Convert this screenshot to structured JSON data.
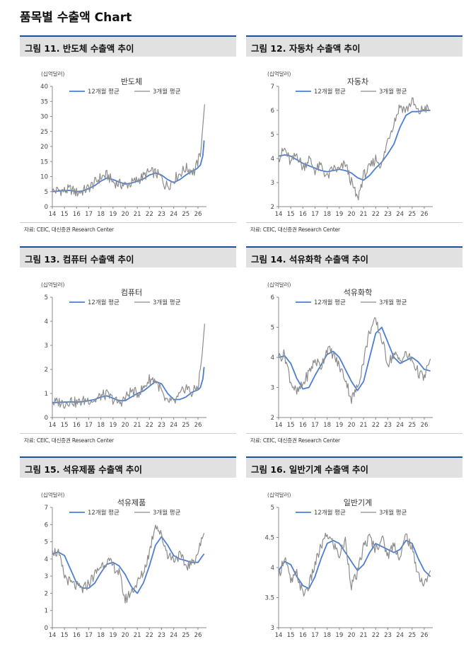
{
  "page_title": "품목별 수출액 Chart",
  "colors": {
    "line_12m": "#4a7fd4",
    "line_3m": "#8c8c8c",
    "header_bar": "#1f4e9c",
    "header_bg": "#e1e1e1"
  },
  "chart_data": [
    {
      "id": "fig11",
      "header": "그림 11. 반도체 수출액 추이",
      "type": "line",
      "title": "반도체",
      "ylabel": "(십억달러)",
      "xlabel": "",
      "x_range": [
        14,
        26.7
      ],
      "ylim": [
        0,
        40
      ],
      "yticks": [
        0,
        5,
        10,
        15,
        20,
        25,
        30,
        35,
        40
      ],
      "xticks": [
        "14",
        "15",
        "16",
        "17",
        "18",
        "19",
        "20",
        "21",
        "22",
        "23",
        "24",
        "25",
        "26"
      ],
      "grid": false,
      "legend_placement": "top-center",
      "source": "자료: CEIC, 대신증권 Research Center",
      "series": [
        {
          "name": "12개월 평균",
          "style": "smooth",
          "x": [
            14,
            14.5,
            15,
            15.5,
            16,
            16.5,
            17,
            17.5,
            18,
            18.5,
            19,
            19.5,
            20,
            20.5,
            21,
            21.5,
            22,
            22.5,
            23,
            23.5,
            24,
            24.5,
            25,
            25.5,
            25.9,
            26.2,
            26.4,
            26.5
          ],
          "y": [
            5,
            5.2,
            5.3,
            5.4,
            5,
            5.2,
            6,
            7,
            8.5,
            9.5,
            9,
            8.2,
            7.5,
            7.8,
            8.5,
            9.2,
            10.5,
            11.2,
            10.5,
            9,
            8,
            9,
            10.5,
            11.8,
            12.6,
            13.8,
            17,
            22
          ]
        },
        {
          "name": "3개월 평균",
          "style": "noisy",
          "x": [
            14,
            14.5,
            15,
            15.5,
            16,
            16.5,
            17,
            17.5,
            18,
            18.5,
            19,
            19.5,
            20,
            20.5,
            21,
            21.5,
            22,
            22.5,
            23,
            23.3,
            23.7,
            24,
            24.5,
            25,
            25.4,
            25.7,
            26,
            26.2,
            26.4,
            26.55
          ],
          "y": [
            5,
            5.5,
            5.2,
            5.8,
            4.6,
            5.2,
            6.2,
            8,
            9.8,
            10.5,
            8.2,
            7.5,
            7.2,
            7.8,
            8.8,
            10,
            11.5,
            11.2,
            9.6,
            7,
            7.5,
            9,
            11,
            12.8,
            12.2,
            11.5,
            15,
            18,
            27,
            34
          ]
        }
      ]
    },
    {
      "id": "fig12",
      "header": "그림 12. 자동차 수출액 추이",
      "type": "line",
      "title": "자동차",
      "ylabel": "(십억달러)",
      "xlabel": "",
      "x_range": [
        14,
        26.7
      ],
      "ylim": [
        2,
        7
      ],
      "yticks": [
        2,
        3,
        4,
        5,
        6,
        7
      ],
      "xticks": [
        "14",
        "15",
        "16",
        "17",
        "18",
        "19",
        "20",
        "21",
        "22",
        "23",
        "24",
        "25",
        "26"
      ],
      "grid": false,
      "legend_placement": "top-center",
      "source": "자료: CEIC, 대신증권 Research Center",
      "series": [
        {
          "name": "12개월 평균",
          "style": "smooth",
          "x": [
            14,
            14.5,
            15,
            15.5,
            16,
            16.5,
            17,
            17.5,
            18,
            18.5,
            19,
            19.5,
            20,
            20.5,
            21,
            21.5,
            22,
            22.5,
            23,
            23.5,
            24,
            24.5,
            25,
            25.5,
            26,
            26.5
          ],
          "y": [
            4.1,
            4.15,
            4.1,
            3.95,
            3.8,
            3.7,
            3.6,
            3.5,
            3.45,
            3.5,
            3.55,
            3.5,
            3.4,
            3.2,
            3.1,
            3.3,
            3.6,
            3.85,
            4.2,
            4.6,
            5.3,
            5.8,
            5.95,
            5.95,
            6.0,
            6.0
          ]
        },
        {
          "name": "3개월 평균",
          "style": "noisy",
          "x": [
            14,
            14.5,
            15,
            15.5,
            16,
            16.5,
            17,
            17.5,
            18,
            18.5,
            19,
            19.5,
            20,
            20.5,
            21,
            21.5,
            22,
            22.5,
            23,
            23.5,
            24,
            24.5,
            25,
            25.5,
            26,
            26.5
          ],
          "y": [
            4.0,
            4.4,
            3.8,
            4.2,
            3.6,
            4.0,
            3.5,
            3.7,
            3.2,
            3.6,
            3.5,
            3.8,
            3.0,
            2.3,
            3.3,
            3.6,
            4.0,
            3.7,
            4.8,
            5.5,
            6.2,
            6.0,
            6.4,
            5.9,
            6.1,
            6.0
          ]
        }
      ]
    },
    {
      "id": "fig13",
      "header": "그림 13. 컴퓨터 수출액 추이",
      "type": "line",
      "title": "컴퓨터",
      "ylabel": "(십억달러)",
      "xlabel": "",
      "x_range": [
        14,
        26.7
      ],
      "ylim": [
        0,
        5
      ],
      "yticks": [
        0,
        1,
        2,
        3,
        4,
        5
      ],
      "xticks": [
        "14",
        "15",
        "16",
        "17",
        "18",
        "19",
        "20",
        "21",
        "22",
        "23",
        "24",
        "25",
        "26"
      ],
      "grid": false,
      "legend_placement": "top-center",
      "source": "자료: CEIC, 대신증권 Research Center",
      "series": [
        {
          "name": "12개월 평균",
          "style": "smooth",
          "x": [
            14,
            14.5,
            15,
            15.5,
            16,
            16.5,
            17,
            17.5,
            18,
            18.5,
            19,
            19.5,
            20,
            20.5,
            21,
            21.5,
            22,
            22.5,
            23,
            23.5,
            24,
            24.5,
            25,
            25.5,
            26,
            26.2,
            26.4,
            26.5
          ],
          "y": [
            0.62,
            0.63,
            0.64,
            0.65,
            0.64,
            0.66,
            0.7,
            0.75,
            0.85,
            0.9,
            0.8,
            0.7,
            0.7,
            0.85,
            1.0,
            1.1,
            1.3,
            1.5,
            1.4,
            1.0,
            0.75,
            0.75,
            0.85,
            1.05,
            1.15,
            1.25,
            1.6,
            2.1
          ]
        },
        {
          "name": "3개월 평균",
          "style": "noisy",
          "x": [
            14,
            14.5,
            15,
            15.5,
            16,
            16.5,
            17,
            17.5,
            18,
            18.5,
            19,
            19.5,
            20,
            20.5,
            21,
            21.5,
            22,
            22.5,
            23,
            23.3,
            23.7,
            24,
            24.5,
            25,
            25.5,
            26,
            26.2,
            26.4,
            26.55
          ],
          "y": [
            0.6,
            0.65,
            0.58,
            0.72,
            0.6,
            0.68,
            0.75,
            0.7,
            0.9,
            0.95,
            0.75,
            0.6,
            0.8,
            1.1,
            1.0,
            1.2,
            1.6,
            1.55,
            1.1,
            0.6,
            0.7,
            0.6,
            0.9,
            1.3,
            1.0,
            1.3,
            2.0,
            3.0,
            3.9
          ]
        }
      ]
    },
    {
      "id": "fig14",
      "header": "그림 14. 석유화학 수출액 추이",
      "type": "line",
      "title": "석유화학",
      "ylabel": "(십억달러)",
      "xlabel": "",
      "x_range": [
        14,
        26.7
      ],
      "ylim": [
        2,
        6
      ],
      "yticks": [
        2,
        3,
        4,
        5,
        6
      ],
      "xticks": [
        "14",
        "15",
        "16",
        "17",
        "18",
        "19",
        "20",
        "21",
        "22",
        "23",
        "24",
        "25",
        "26"
      ],
      "grid": false,
      "legend_placement": "top-center",
      "source": "자료: CEIC, 대신증권 Research Center",
      "series": [
        {
          "name": "12개월 평균",
          "style": "smooth",
          "x": [
            14,
            14.5,
            15,
            15.5,
            16,
            16.5,
            17,
            17.5,
            18,
            18.5,
            19,
            19.5,
            20,
            20.5,
            21,
            21.5,
            22,
            22.5,
            23,
            23.5,
            24,
            24.5,
            25,
            25.5,
            26,
            26.5
          ],
          "y": [
            4.0,
            4.05,
            3.8,
            3.3,
            2.95,
            3.0,
            3.4,
            3.75,
            4.1,
            4.2,
            4.0,
            3.6,
            3.2,
            2.9,
            3.2,
            4.0,
            4.8,
            5.0,
            4.5,
            4.0,
            3.8,
            3.9,
            4.0,
            3.85,
            3.6,
            3.55
          ]
        },
        {
          "name": "3개월 평균",
          "style": "noisy",
          "x": [
            14,
            14.5,
            15,
            15.5,
            16,
            16.5,
            17,
            17.5,
            18,
            18.5,
            19,
            19.5,
            20,
            20.5,
            21,
            21.5,
            22,
            22.5,
            23,
            23.5,
            24,
            24.5,
            25,
            25.5,
            26,
            26.5
          ],
          "y": [
            4.0,
            4.1,
            3.2,
            2.8,
            3.1,
            3.5,
            3.9,
            3.7,
            4.3,
            4.1,
            3.7,
            3.3,
            2.6,
            3.0,
            3.9,
            4.9,
            5.2,
            4.6,
            3.8,
            4.1,
            3.9,
            4.1,
            3.9,
            3.5,
            3.3,
            3.95
          ]
        }
      ]
    },
    {
      "id": "fig15",
      "header": "그림 15. 석유제품 수출액 추이",
      "type": "line",
      "title": "석유제품",
      "ylabel": "(십억달러)",
      "xlabel": "",
      "x_range": [
        14,
        26.7
      ],
      "ylim": [
        0,
        7
      ],
      "yticks": [
        0,
        1,
        2,
        3,
        4,
        5,
        6,
        7
      ],
      "xticks": [
        "14",
        "15",
        "16",
        "17",
        "18",
        "19",
        "20",
        "21",
        "22",
        "23",
        "24",
        "25",
        "26"
      ],
      "grid": false,
      "legend_placement": "top-center",
      "source": "",
      "series": [
        {
          "name": "12개월 평균",
          "style": "smooth",
          "x": [
            14,
            14.5,
            15,
            15.5,
            16,
            16.5,
            17,
            17.5,
            18,
            18.5,
            19,
            19.5,
            20,
            20.5,
            21,
            21.5,
            22,
            22.5,
            23,
            23.5,
            24,
            24.5,
            25,
            25.5,
            26,
            26.5
          ],
          "y": [
            4.3,
            4.4,
            4.2,
            3.4,
            2.6,
            2.3,
            2.3,
            2.6,
            3.2,
            3.7,
            3.8,
            3.6,
            3.1,
            2.4,
            2.0,
            2.6,
            3.6,
            4.8,
            5.3,
            4.8,
            4.2,
            4.0,
            3.9,
            3.8,
            3.8,
            4.3
          ]
        },
        {
          "name": "3개월 평균",
          "style": "noisy",
          "x": [
            14,
            14.5,
            15,
            15.5,
            16,
            16.5,
            17,
            17.5,
            18,
            18.5,
            19,
            19.5,
            20,
            20.5,
            21,
            21.5,
            22,
            22.5,
            23,
            23.5,
            24,
            24.5,
            25,
            25.5,
            26,
            26.5
          ],
          "y": [
            4.5,
            4.3,
            3.0,
            2.6,
            2.4,
            2.2,
            2.6,
            3.1,
            3.6,
            3.9,
            3.6,
            3.2,
            1.6,
            2.1,
            2.6,
            3.2,
            4.4,
            6.1,
            5.3,
            4.3,
            4.0,
            4.2,
            3.6,
            3.7,
            4.4,
            5.5
          ]
        }
      ]
    },
    {
      "id": "fig16",
      "header": "그림 16. 일반기계 수출액 추이",
      "type": "line",
      "title": "일반기계",
      "ylabel": "(십억달러)",
      "xlabel": "",
      "x_range": [
        14,
        26.7
      ],
      "ylim": [
        3,
        5
      ],
      "yticks": [
        3,
        3.5,
        4,
        4.5,
        5
      ],
      "xticks": [
        "14",
        "15",
        "16",
        "17",
        "18",
        "19",
        "20",
        "21",
        "22",
        "23",
        "24",
        "25",
        "26"
      ],
      "grid": false,
      "legend_placement": "top-center",
      "source": "",
      "series": [
        {
          "name": "12개월 평균",
          "style": "smooth",
          "x": [
            14,
            14.5,
            15,
            15.5,
            16,
            16.5,
            17,
            17.5,
            18,
            18.5,
            19,
            19.5,
            20,
            20.5,
            21,
            21.5,
            22,
            22.5,
            23,
            23.5,
            24,
            24.5,
            25,
            25.5,
            26,
            26.5
          ],
          "y": [
            3.95,
            4.1,
            4.05,
            3.85,
            3.7,
            3.65,
            3.85,
            4.15,
            4.4,
            4.45,
            4.4,
            4.25,
            4.1,
            3.95,
            4.05,
            4.25,
            4.4,
            4.35,
            4.3,
            4.25,
            4.3,
            4.45,
            4.4,
            4.15,
            3.95,
            3.85
          ]
        },
        {
          "name": "3개월 평균",
          "style": "noisy",
          "x": [
            14,
            14.5,
            15,
            15.5,
            16,
            16.5,
            17,
            17.5,
            18,
            18.5,
            19,
            19.5,
            20,
            20.5,
            21,
            21.5,
            22,
            22.5,
            23,
            23.5,
            24,
            24.5,
            25,
            25.5,
            26,
            26.5
          ],
          "y": [
            3.85,
            4.2,
            3.75,
            3.9,
            3.55,
            3.7,
            4.05,
            4.35,
            4.55,
            4.4,
            4.2,
            4.45,
            3.7,
            3.9,
            4.35,
            4.5,
            4.3,
            4.5,
            4.2,
            4.4,
            4.15,
            4.55,
            4.3,
            3.9,
            3.7,
            3.95
          ]
        }
      ]
    }
  ]
}
